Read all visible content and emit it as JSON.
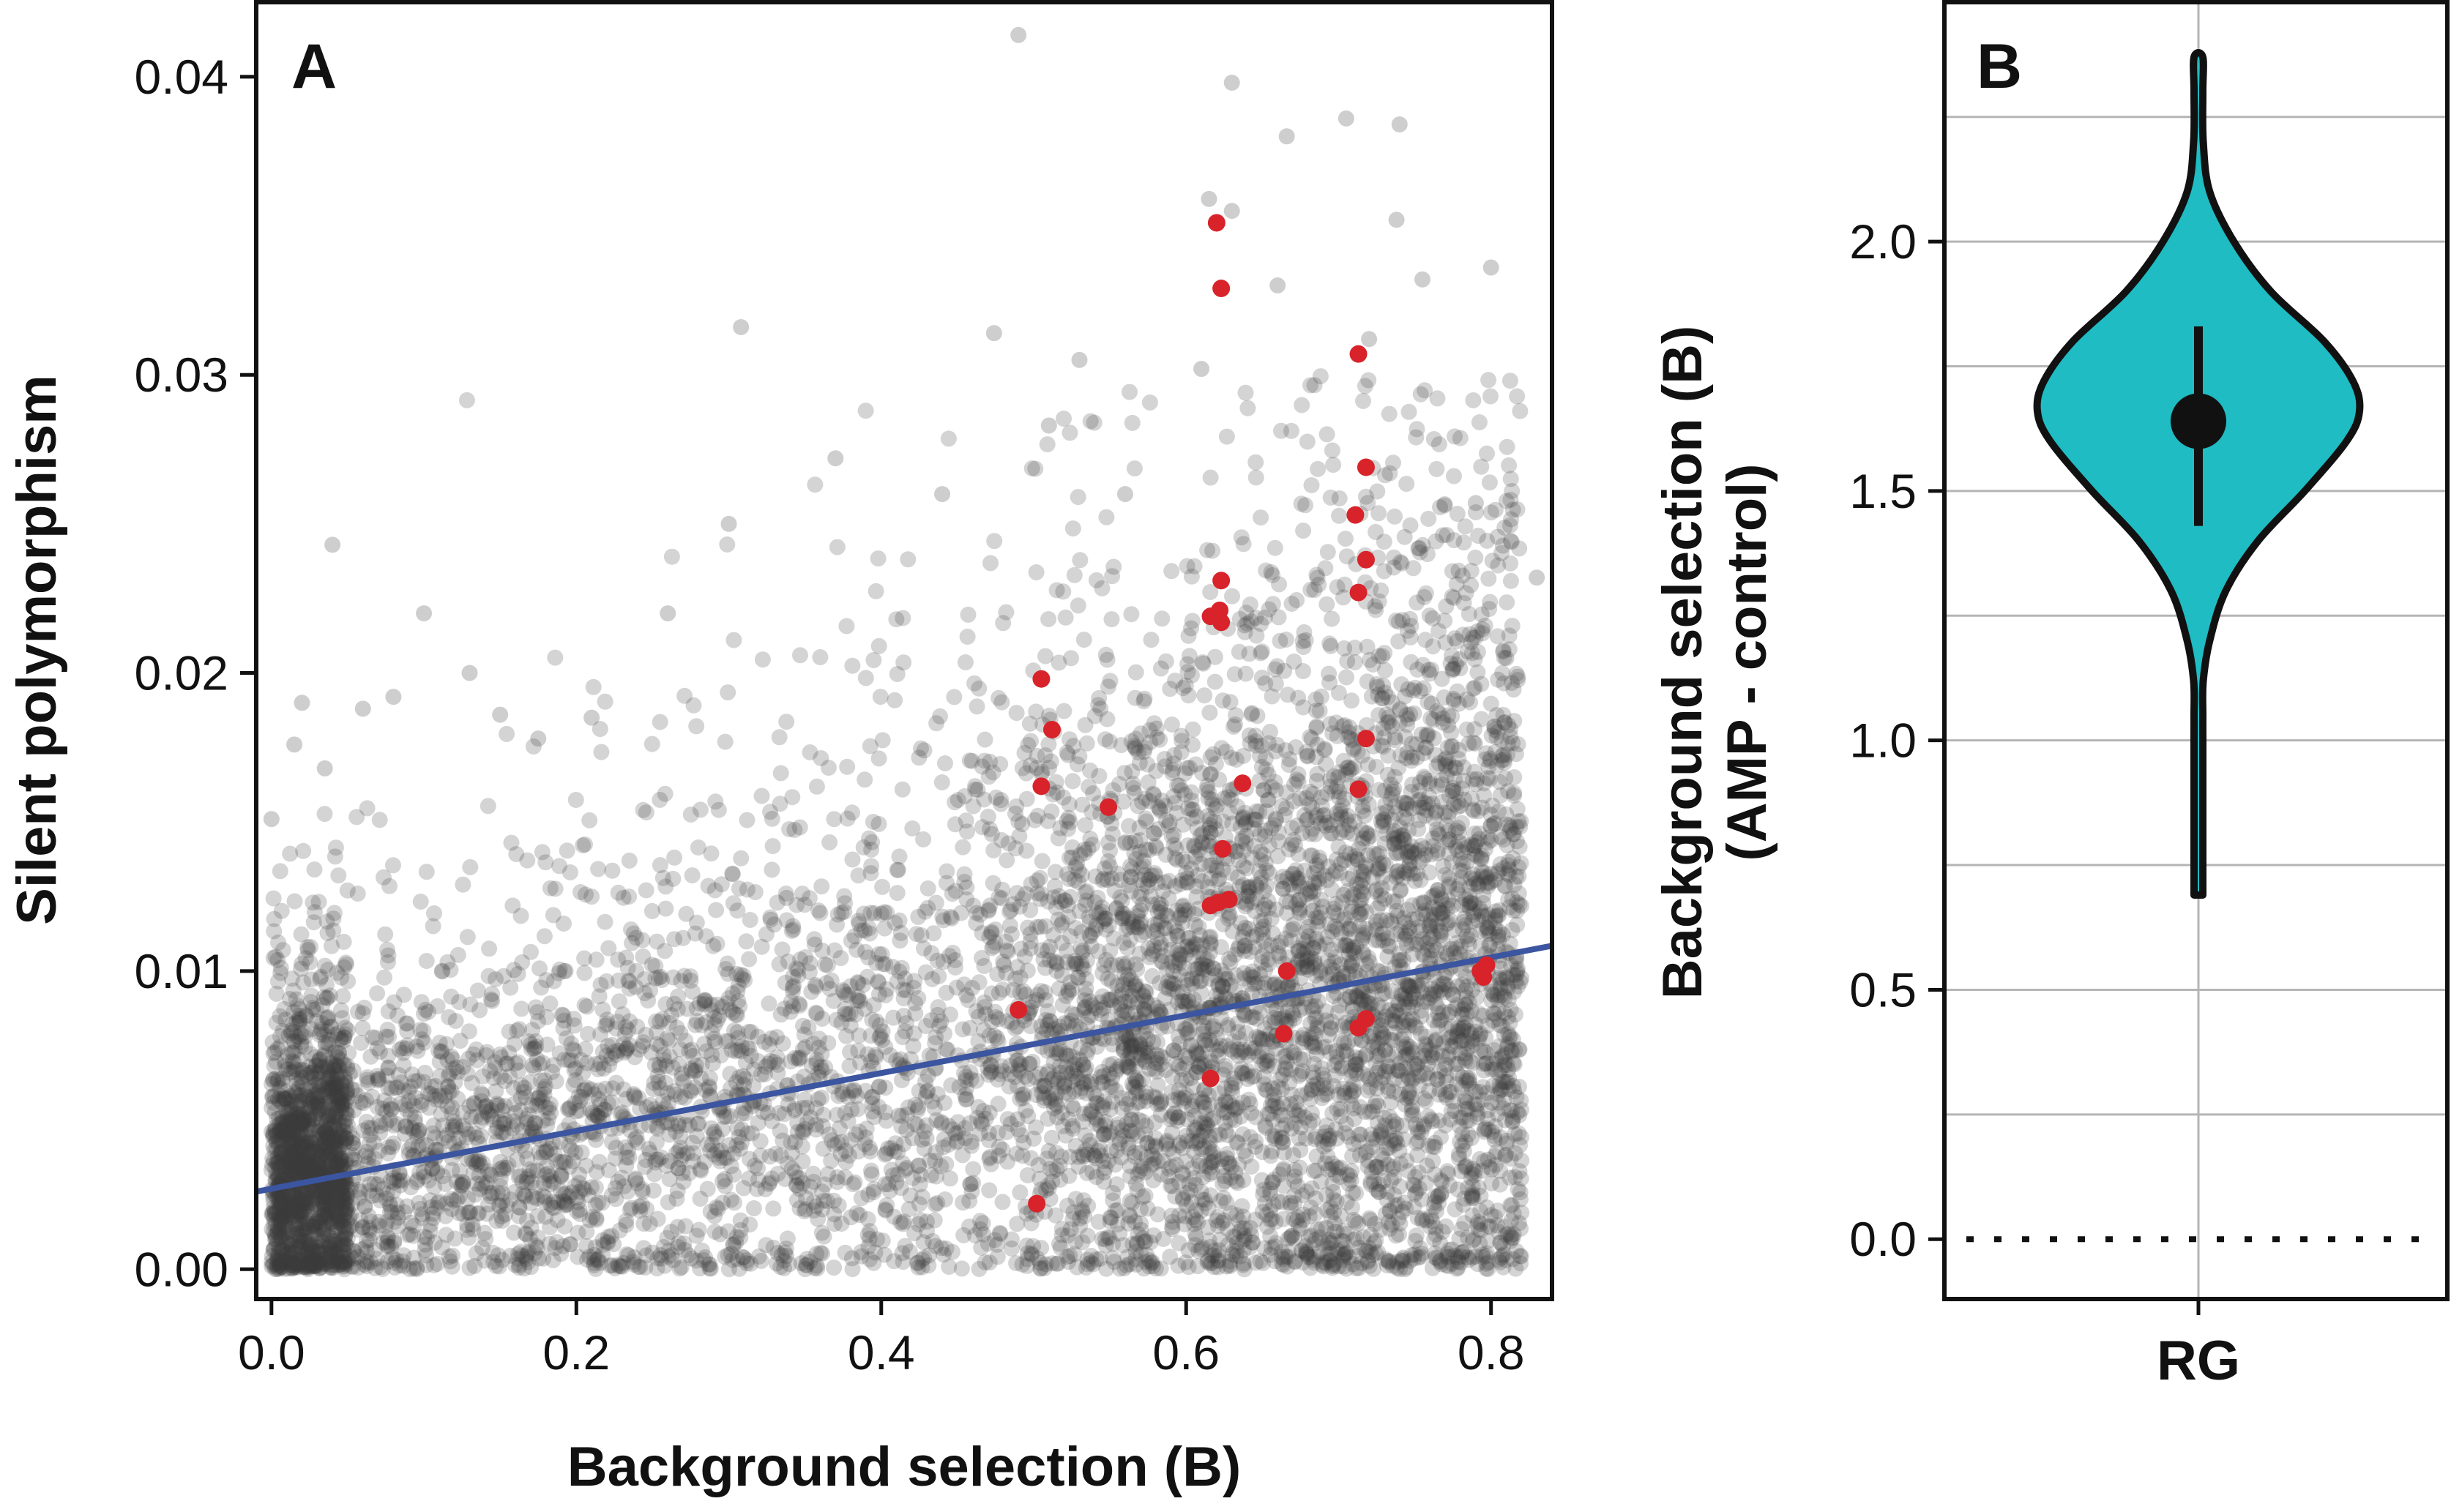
{
  "chart_data": [
    {
      "panel": "A",
      "type": "scatter",
      "panel_label": "A",
      "xlabel": "Background selection (B)",
      "ylabel": "Silent polymorphism",
      "xlim": [
        -0.01,
        0.84
      ],
      "ylim": [
        -0.001,
        0.0425
      ],
      "xticks": [
        "0.0",
        "0.2",
        "0.4",
        "0.6",
        "0.8"
      ],
      "yticks": [
        "0.00",
        "0.01",
        "0.02",
        "0.03",
        "0.04"
      ],
      "grid": false,
      "series": [
        {
          "color": "#3a3a3a",
          "marker": "semi-transparent circle",
          "description_of_density": "tens of thousands of points; dense band near 0-0.012, wider spread at B 0.5-0.8",
          "outliers": [
            [
              0.49,
              0.0414
            ],
            [
              0.63,
              0.0398
            ],
            [
              0.705,
              0.0386
            ],
            [
              0.74,
              0.0384
            ],
            [
              0.666,
              0.038
            ],
            [
              0.615,
              0.0359
            ],
            [
              0.63,
              0.0355
            ],
            [
              0.738,
              0.0352
            ],
            [
              0.755,
              0.0332
            ],
            [
              0.8,
              0.0336
            ],
            [
              0.66,
              0.033
            ],
            [
              0.308,
              0.0316
            ],
            [
              0.474,
              0.0314
            ],
            [
              0.72,
              0.0312
            ],
            [
              0.61,
              0.0302
            ],
            [
              0.04,
              0.0243
            ],
            [
              0.1,
              0.022
            ],
            [
              0.13,
              0.02
            ],
            [
              0.26,
              0.022
            ],
            [
              0.3,
              0.025
            ],
            [
              0.37,
              0.0272
            ],
            [
              0.51,
              0.0283
            ],
            [
              0.53,
              0.0305
            ],
            [
              0.56,
              0.026
            ],
            [
              0.44,
              0.026
            ],
            [
              0.02,
              0.019
            ],
            [
              0.06,
              0.0188
            ],
            [
              0.08,
              0.0192
            ],
            [
              0.15,
              0.0186
            ],
            [
              0.175,
              0.0178
            ],
            [
              0.21,
              0.0185
            ],
            [
              0.83,
              0.0232
            ],
            [
              0.81,
              0.0205
            ],
            [
              0.79,
              0.0257
            ],
            [
              0.69,
              0.0001
            ],
            [
              0.7,
              0.0001
            ],
            [
              0.0,
              0.0151
            ],
            [
              0.015,
              0.0176
            ],
            [
              0.035,
              0.0168
            ]
          ]
        },
        {
          "color": "#d9232a",
          "marker": "filled circle",
          "points": [
            [
              0.62,
              0.0351
            ],
            [
              0.623,
              0.0329
            ],
            [
              0.713,
              0.0307
            ],
            [
              0.718,
              0.0269
            ],
            [
              0.711,
              0.0253
            ],
            [
              0.718,
              0.0238
            ],
            [
              0.623,
              0.0231
            ],
            [
              0.713,
              0.0227
            ],
            [
              0.616,
              0.0219
            ],
            [
              0.622,
              0.0221
            ],
            [
              0.623,
              0.0217
            ],
            [
              0.505,
              0.0198
            ],
            [
              0.512,
              0.0181
            ],
            [
              0.718,
              0.0178
            ],
            [
              0.505,
              0.0162
            ],
            [
              0.549,
              0.0155
            ],
            [
              0.637,
              0.0163
            ],
            [
              0.713,
              0.0161
            ],
            [
              0.624,
              0.0141
            ],
            [
              0.616,
              0.0122
            ],
            [
              0.621,
              0.0123
            ],
            [
              0.628,
              0.0124
            ],
            [
              0.49,
              0.0087
            ],
            [
              0.666,
              0.01
            ],
            [
              0.713,
              0.0081
            ],
            [
              0.718,
              0.0084
            ],
            [
              0.664,
              0.0079
            ],
            [
              0.616,
              0.0064
            ],
            [
              0.795,
              0.0098
            ],
            [
              0.797,
              0.0102
            ],
            [
              0.793,
              0.01
            ],
            [
              0.502,
              0.0022
            ]
          ]
        }
      ],
      "regression_line": {
        "color": "#3b55a0",
        "intercept": 0.0027,
        "slope": 0.0097,
        "x": [
          -0.01,
          0.84
        ]
      }
    },
    {
      "panel": "B",
      "type": "violin",
      "panel_label": "B",
      "categories": [
        "RG"
      ],
      "ylabel_line1": "Background selection (B)",
      "ylabel_line2": "(AMP - control)",
      "ylim": [
        -0.12,
        2.48
      ],
      "yticks": [
        "0.0",
        "0.5",
        "1.0",
        "1.5",
        "2.0"
      ],
      "grid": true,
      "reference_line": {
        "value": 0.0,
        "style": "dotted"
      },
      "violin": {
        "fill": "#1fbcc3",
        "min": 0.69,
        "max": 2.37,
        "median": 1.64,
        "iqr": [
          1.43,
          1.83
        ],
        "density_profile": [
          [
            0.69,
            0.0
          ],
          [
            0.85,
            0.01
          ],
          [
            1.0,
            0.015
          ],
          [
            1.05,
            0.018
          ],
          [
            1.12,
            0.03
          ],
          [
            1.2,
            0.07
          ],
          [
            1.3,
            0.17
          ],
          [
            1.4,
            0.37
          ],
          [
            1.5,
            0.66
          ],
          [
            1.6,
            0.92
          ],
          [
            1.66,
            1.0
          ],
          [
            1.72,
            0.96
          ],
          [
            1.8,
            0.78
          ],
          [
            1.9,
            0.45
          ],
          [
            2.0,
            0.22
          ],
          [
            2.1,
            0.07
          ],
          [
            2.2,
            0.03
          ],
          [
            2.3,
            0.012
          ],
          [
            2.37,
            0.0
          ]
        ]
      }
    }
  ]
}
